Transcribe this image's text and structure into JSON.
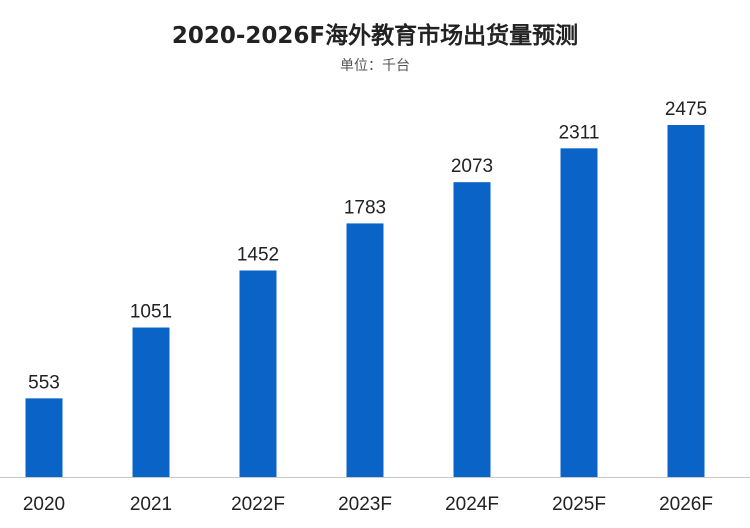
{
  "chart_data": {
    "type": "bar",
    "title": "2020-2026F海外教育市场出货量预测",
    "subtitle": "单位：千台",
    "categories": [
      "2020",
      "2021",
      "2022F",
      "2023F",
      "2024F",
      "2025F",
      "2026F"
    ],
    "values": [
      553,
      1051,
      1452,
      1783,
      2073,
      2311,
      2475
    ],
    "ylim": [
      0,
      2475
    ],
    "bar_color": "#0a64c8",
    "axis_color": "#c8c8c8",
    "grid": false,
    "legend": "none"
  }
}
